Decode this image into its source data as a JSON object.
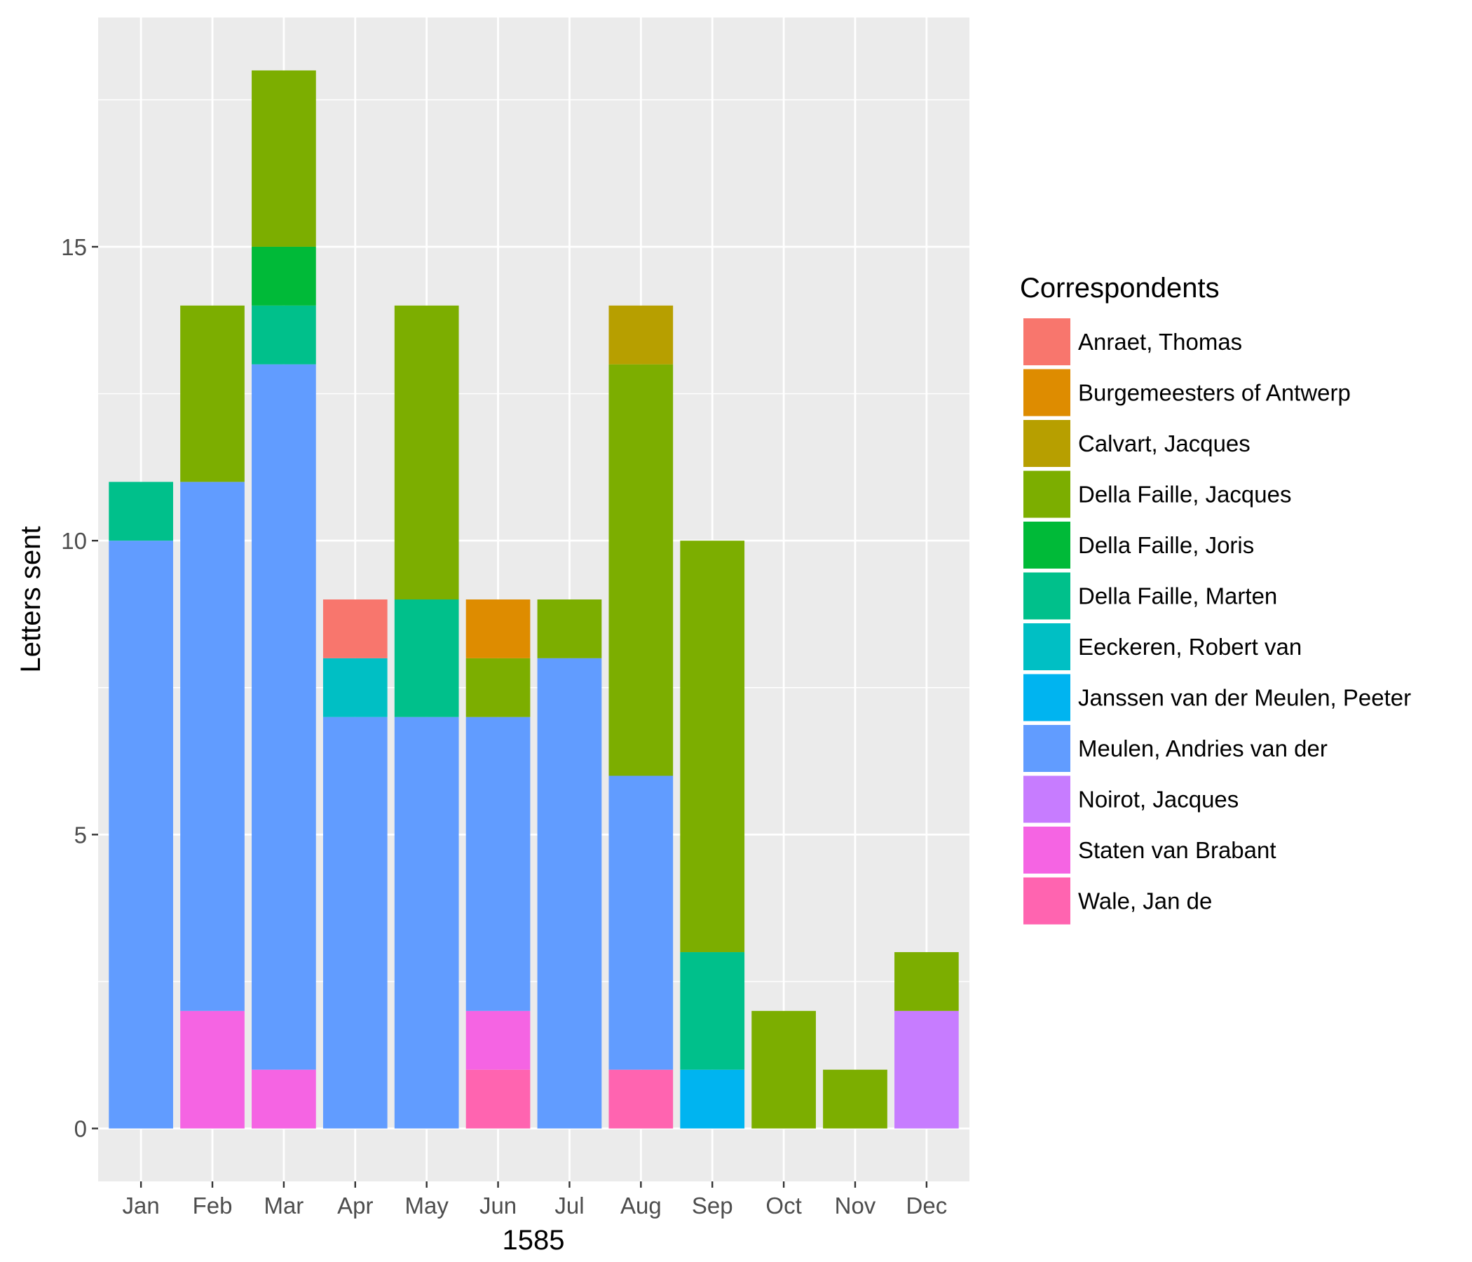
{
  "chart_data": {
    "type": "bar",
    "stacked": true,
    "categories": [
      "Jan",
      "Feb",
      "Mar",
      "Apr",
      "May",
      "Jun",
      "Jul",
      "Aug",
      "Sep",
      "Oct",
      "Nov",
      "Dec"
    ],
    "xlabel": "1585",
    "ylabel": "Letters sent",
    "ylim": [
      -0.9,
      18.9
    ],
    "yticks": [
      0,
      5,
      10,
      15
    ],
    "grid": true,
    "legend": {
      "title": "Correspondents",
      "position": "right"
    },
    "series": [
      {
        "name": "Anraet, Thomas",
        "color": "#F8766D",
        "values": [
          0,
          0,
          0,
          1,
          0,
          0,
          0,
          0,
          0,
          0,
          0,
          0
        ]
      },
      {
        "name": "Burgemeesters of Antwerp",
        "color": "#DE8C00",
        "values": [
          0,
          0,
          0,
          0,
          0,
          1,
          0,
          0,
          0,
          0,
          0,
          0
        ]
      },
      {
        "name": "Calvart, Jacques",
        "color": "#B79F00",
        "values": [
          0,
          0,
          0,
          0,
          0,
          0,
          0,
          1,
          0,
          0,
          0,
          0
        ]
      },
      {
        "name": "Della Faille, Jacques",
        "color": "#7CAE00",
        "values": [
          0,
          3,
          3,
          0,
          5,
          1,
          1,
          7,
          7,
          2,
          1,
          1
        ]
      },
      {
        "name": "Della Faille, Joris",
        "color": "#00BA38",
        "values": [
          0,
          0,
          1,
          0,
          0,
          0,
          0,
          0,
          0,
          0,
          0,
          0
        ]
      },
      {
        "name": "Della Faille, Marten",
        "color": "#00C08B",
        "values": [
          1,
          0,
          1,
          0,
          2,
          0,
          0,
          0,
          2,
          0,
          0,
          0
        ]
      },
      {
        "name": "Eeckeren, Robert van",
        "color": "#00BFC4",
        "values": [
          0,
          0,
          0,
          1,
          0,
          0,
          0,
          0,
          0,
          0,
          0,
          0
        ]
      },
      {
        "name": "Janssen van der Meulen, Peeter",
        "color": "#00B4F0",
        "values": [
          0,
          0,
          0,
          0,
          0,
          0,
          0,
          0,
          1,
          0,
          0,
          0
        ]
      },
      {
        "name": "Meulen, Andries van der",
        "color": "#619CFF",
        "values": [
          10,
          9,
          12,
          7,
          7,
          5,
          8,
          5,
          0,
          0,
          0,
          0
        ]
      },
      {
        "name": "Noirot, Jacques",
        "color": "#C77CFF",
        "values": [
          0,
          0,
          0,
          0,
          0,
          0,
          0,
          0,
          0,
          0,
          0,
          2
        ]
      },
      {
        "name": "Staten van Brabant",
        "color": "#F564E3",
        "values": [
          0,
          2,
          1,
          0,
          0,
          1,
          0,
          0,
          0,
          0,
          0,
          0
        ]
      },
      {
        "name": "Wale, Jan de",
        "color": "#FF64B0",
        "values": [
          0,
          0,
          0,
          0,
          0,
          1,
          0,
          1,
          0,
          0,
          0,
          0
        ]
      }
    ]
  }
}
